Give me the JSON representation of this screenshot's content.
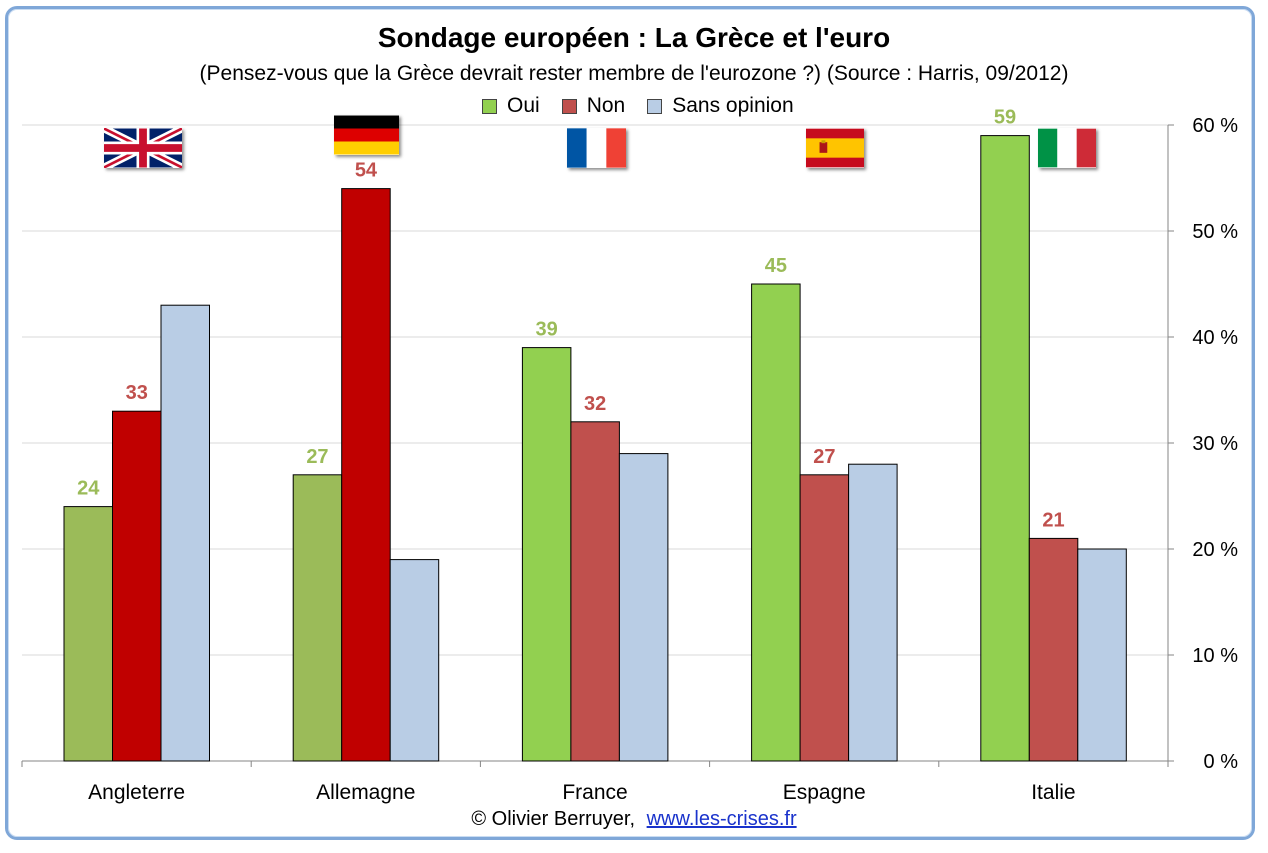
{
  "title": "Sondage européen : La Grèce et l'euro",
  "subtitle": "(Pensez-vous que la Grèce devrait rester membre de l'eurozone ?) (Source : Harris, 09/2012)",
  "credit": {
    "author": "© Olivier Berruyer,",
    "link": "www.les-crises.fr"
  },
  "chart_data": {
    "type": "bar",
    "categories": [
      "Angleterre",
      "Allemagne",
      "France",
      "Espagne",
      "Italie"
    ],
    "series": [
      {
        "name": "Oui",
        "values": [
          24,
          27,
          39,
          45,
          59
        ],
        "colors": [
          "#9bbb59",
          "#9bbb59",
          "#92d050",
          "#92d050",
          "#92d050"
        ],
        "labelColor": "#9bbb59"
      },
      {
        "name": "Non",
        "values": [
          33,
          54,
          32,
          27,
          21
        ],
        "colors": [
          "#c00000",
          "#c00000",
          "#c0504d",
          "#c0504d",
          "#c0504d"
        ],
        "labelColor": "#c0504d"
      },
      {
        "name": "Sans opinion",
        "values": [
          43,
          19,
          29,
          28,
          20
        ],
        "colors": [
          "#b9cde5",
          "#b9cde5",
          "#b9cde5",
          "#b9cde5",
          "#b9cde5"
        ],
        "labelColor": "#4f81bd"
      }
    ],
    "data_labels": [
      {
        "series": 0,
        "category": 0,
        "text": "24"
      },
      {
        "series": 1,
        "category": 0,
        "text": "33"
      },
      {
        "series": 0,
        "category": 1,
        "text": "27"
      },
      {
        "series": 1,
        "category": 1,
        "text": "54"
      },
      {
        "series": 0,
        "category": 2,
        "text": "39"
      },
      {
        "series": 1,
        "category": 2,
        "text": "32"
      },
      {
        "series": 0,
        "category": 3,
        "text": "45"
      },
      {
        "series": 1,
        "category": 3,
        "text": "27"
      },
      {
        "series": 0,
        "category": 4,
        "text": "59"
      },
      {
        "series": 1,
        "category": 4,
        "text": "21"
      }
    ],
    "y_ticks": [
      {
        "value": 0,
        "label": "0 %"
      },
      {
        "value": 10,
        "label": "10 %"
      },
      {
        "value": 20,
        "label": "20 %"
      },
      {
        "value": 30,
        "label": "30 %"
      },
      {
        "value": 40,
        "label": "40 %"
      },
      {
        "value": 50,
        "label": "50 %"
      },
      {
        "value": 60,
        "label": "60 %"
      }
    ],
    "ylim": [
      0,
      60
    ],
    "y_axis_side": "right",
    "grid": true,
    "legend_position": "top",
    "flags": [
      "uk-flag",
      "germany-flag",
      "france-flag",
      "spain-flag",
      "italy-flag"
    ]
  }
}
